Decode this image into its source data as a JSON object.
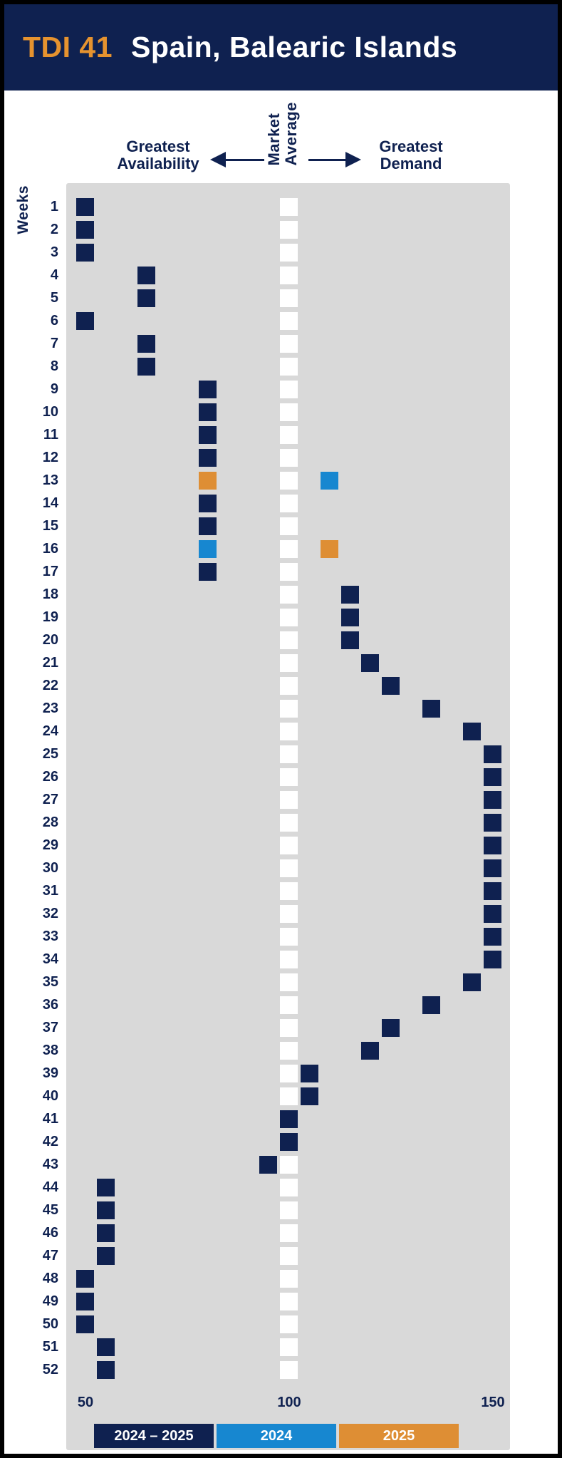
{
  "palette": {
    "navy": "#0f2150",
    "blue": "#1787d0",
    "orange": "#de8e34",
    "title_orange": "#e6932f",
    "cell_gray": "#d9d9d9",
    "white": "#ffffff"
  },
  "header": {
    "tdi_label": "TDI 41",
    "title": "Spain, Balearic Islands"
  },
  "annotations": {
    "left_line1": "Greatest",
    "left_line2": "Availability",
    "center_line1": "Market",
    "center_line2": "Average",
    "right_line1": "Greatest",
    "right_line2": "Demand"
  },
  "y_axis_label": "Weeks",
  "x_axis": {
    "ticks": [
      "50",
      "100",
      "150"
    ]
  },
  "legend": {
    "items": [
      {
        "label": "2024 – 2025",
        "color_key": "navy"
      },
      {
        "label": "2024",
        "color_key": "blue"
      },
      {
        "label": "2025",
        "color_key": "orange"
      }
    ]
  },
  "chart_data": {
    "type": "heatmap",
    "subtype": "weekly-waffle-index",
    "title": "TDI 41 Spain, Balearic Islands",
    "xlabel_left": "Greatest Availability",
    "xlabel_center": "Market Average",
    "xlabel_right": "Greatest Demand",
    "ylabel": "Weeks",
    "columns": 21,
    "center_column": 11,
    "x_scale": {
      "min": 50,
      "market_average": 100,
      "max": 150,
      "units_per_column": 5,
      "ticks": [
        50,
        100,
        150
      ]
    },
    "series_colors": {
      "2024-2025": "navy",
      "2024": "blue",
      "2025": "orange"
    },
    "weeks": [
      {
        "week": 1,
        "marks": [
          {
            "col": 1,
            "series": "2024-2025",
            "tdi": "50-55"
          }
        ]
      },
      {
        "week": 2,
        "marks": [
          {
            "col": 1,
            "series": "2024-2025",
            "tdi": "50-55"
          }
        ]
      },
      {
        "week": 3,
        "marks": [
          {
            "col": 1,
            "series": "2024-2025",
            "tdi": "50-55"
          }
        ]
      },
      {
        "week": 4,
        "marks": [
          {
            "col": 4,
            "series": "2024-2025",
            "tdi": "65-70"
          }
        ]
      },
      {
        "week": 5,
        "marks": [
          {
            "col": 4,
            "series": "2024-2025",
            "tdi": "65-70"
          }
        ]
      },
      {
        "week": 6,
        "marks": [
          {
            "col": 1,
            "series": "2024-2025",
            "tdi": "50-55"
          }
        ]
      },
      {
        "week": 7,
        "marks": [
          {
            "col": 4,
            "series": "2024-2025",
            "tdi": "65-70"
          }
        ]
      },
      {
        "week": 8,
        "marks": [
          {
            "col": 4,
            "series": "2024-2025",
            "tdi": "65-70"
          }
        ]
      },
      {
        "week": 9,
        "marks": [
          {
            "col": 7,
            "series": "2024-2025",
            "tdi": "80-85"
          }
        ]
      },
      {
        "week": 10,
        "marks": [
          {
            "col": 7,
            "series": "2024-2025",
            "tdi": "80-85"
          }
        ]
      },
      {
        "week": 11,
        "marks": [
          {
            "col": 7,
            "series": "2024-2025",
            "tdi": "80-85"
          }
        ]
      },
      {
        "week": 12,
        "marks": [
          {
            "col": 7,
            "series": "2024-2025",
            "tdi": "80-85"
          }
        ]
      },
      {
        "week": 13,
        "marks": [
          {
            "col": 7,
            "series": "2025",
            "tdi": "80-85"
          },
          {
            "col": 13,
            "series": "2024",
            "tdi": "105-110"
          }
        ]
      },
      {
        "week": 14,
        "marks": [
          {
            "col": 7,
            "series": "2024-2025",
            "tdi": "80-85"
          }
        ]
      },
      {
        "week": 15,
        "marks": [
          {
            "col": 7,
            "series": "2024-2025",
            "tdi": "80-85"
          }
        ]
      },
      {
        "week": 16,
        "marks": [
          {
            "col": 7,
            "series": "2024",
            "tdi": "80-85"
          },
          {
            "col": 13,
            "series": "2025",
            "tdi": "105-110"
          }
        ]
      },
      {
        "week": 17,
        "marks": [
          {
            "col": 7,
            "series": "2024-2025",
            "tdi": "80-85"
          }
        ]
      },
      {
        "week": 18,
        "marks": [
          {
            "col": 14,
            "series": "2024-2025",
            "tdi": "110-115"
          }
        ]
      },
      {
        "week": 19,
        "marks": [
          {
            "col": 14,
            "series": "2024-2025",
            "tdi": "110-115"
          }
        ]
      },
      {
        "week": 20,
        "marks": [
          {
            "col": 14,
            "series": "2024-2025",
            "tdi": "110-115"
          }
        ]
      },
      {
        "week": 21,
        "marks": [
          {
            "col": 15,
            "series": "2024-2025",
            "tdi": "115-120"
          }
        ]
      },
      {
        "week": 22,
        "marks": [
          {
            "col": 16,
            "series": "2024-2025",
            "tdi": "120-125"
          }
        ]
      },
      {
        "week": 23,
        "marks": [
          {
            "col": 18,
            "series": "2024-2025",
            "tdi": "130-135"
          }
        ]
      },
      {
        "week": 24,
        "marks": [
          {
            "col": 20,
            "series": "2024-2025",
            "tdi": "140-145"
          }
        ]
      },
      {
        "week": 25,
        "marks": [
          {
            "col": 21,
            "series": "2024-2025",
            "tdi": "145-150"
          }
        ]
      },
      {
        "week": 26,
        "marks": [
          {
            "col": 21,
            "series": "2024-2025",
            "tdi": "145-150"
          }
        ]
      },
      {
        "week": 27,
        "marks": [
          {
            "col": 21,
            "series": "2024-2025",
            "tdi": "145-150"
          }
        ]
      },
      {
        "week": 28,
        "marks": [
          {
            "col": 21,
            "series": "2024-2025",
            "tdi": "145-150"
          }
        ]
      },
      {
        "week": 29,
        "marks": [
          {
            "col": 21,
            "series": "2024-2025",
            "tdi": "145-150"
          }
        ]
      },
      {
        "week": 30,
        "marks": [
          {
            "col": 21,
            "series": "2024-2025",
            "tdi": "145-150"
          }
        ]
      },
      {
        "week": 31,
        "marks": [
          {
            "col": 21,
            "series": "2024-2025",
            "tdi": "145-150"
          }
        ]
      },
      {
        "week": 32,
        "marks": [
          {
            "col": 21,
            "series": "2024-2025",
            "tdi": "145-150"
          }
        ]
      },
      {
        "week": 33,
        "marks": [
          {
            "col": 21,
            "series": "2024-2025",
            "tdi": "145-150"
          }
        ]
      },
      {
        "week": 34,
        "marks": [
          {
            "col": 21,
            "series": "2024-2025",
            "tdi": "145-150"
          }
        ]
      },
      {
        "week": 35,
        "marks": [
          {
            "col": 20,
            "series": "2024-2025",
            "tdi": "140-145"
          }
        ]
      },
      {
        "week": 36,
        "marks": [
          {
            "col": 18,
            "series": "2024-2025",
            "tdi": "130-135"
          }
        ]
      },
      {
        "week": 37,
        "marks": [
          {
            "col": 16,
            "series": "2024-2025",
            "tdi": "120-125"
          }
        ]
      },
      {
        "week": 38,
        "marks": [
          {
            "col": 15,
            "series": "2024-2025",
            "tdi": "115-120"
          }
        ]
      },
      {
        "week": 39,
        "marks": [
          {
            "col": 12,
            "series": "2024-2025",
            "tdi": "100-105"
          }
        ]
      },
      {
        "week": 40,
        "marks": [
          {
            "col": 12,
            "series": "2024-2025",
            "tdi": "100-105"
          }
        ]
      },
      {
        "week": 41,
        "marks": [
          {
            "col": 11,
            "series": "2024-2025",
            "tdi": "100"
          }
        ]
      },
      {
        "week": 42,
        "marks": [
          {
            "col": 11,
            "series": "2024-2025",
            "tdi": "100"
          }
        ]
      },
      {
        "week": 43,
        "marks": [
          {
            "col": 10,
            "series": "2024-2025",
            "tdi": "95-100"
          }
        ]
      },
      {
        "week": 44,
        "marks": [
          {
            "col": 2,
            "series": "2024-2025",
            "tdi": "55-60"
          }
        ]
      },
      {
        "week": 45,
        "marks": [
          {
            "col": 2,
            "series": "2024-2025",
            "tdi": "55-60"
          }
        ]
      },
      {
        "week": 46,
        "marks": [
          {
            "col": 2,
            "series": "2024-2025",
            "tdi": "55-60"
          }
        ]
      },
      {
        "week": 47,
        "marks": [
          {
            "col": 2,
            "series": "2024-2025",
            "tdi": "55-60"
          }
        ]
      },
      {
        "week": 48,
        "marks": [
          {
            "col": 1,
            "series": "2024-2025",
            "tdi": "50-55"
          }
        ]
      },
      {
        "week": 49,
        "marks": [
          {
            "col": 1,
            "series": "2024-2025",
            "tdi": "50-55"
          }
        ]
      },
      {
        "week": 50,
        "marks": [
          {
            "col": 1,
            "series": "2024-2025",
            "tdi": "50-55"
          }
        ]
      },
      {
        "week": 51,
        "marks": [
          {
            "col": 2,
            "series": "2024-2025",
            "tdi": "55-60"
          }
        ]
      },
      {
        "week": 52,
        "marks": [
          {
            "col": 2,
            "series": "2024-2025",
            "tdi": "55-60"
          }
        ]
      }
    ]
  }
}
